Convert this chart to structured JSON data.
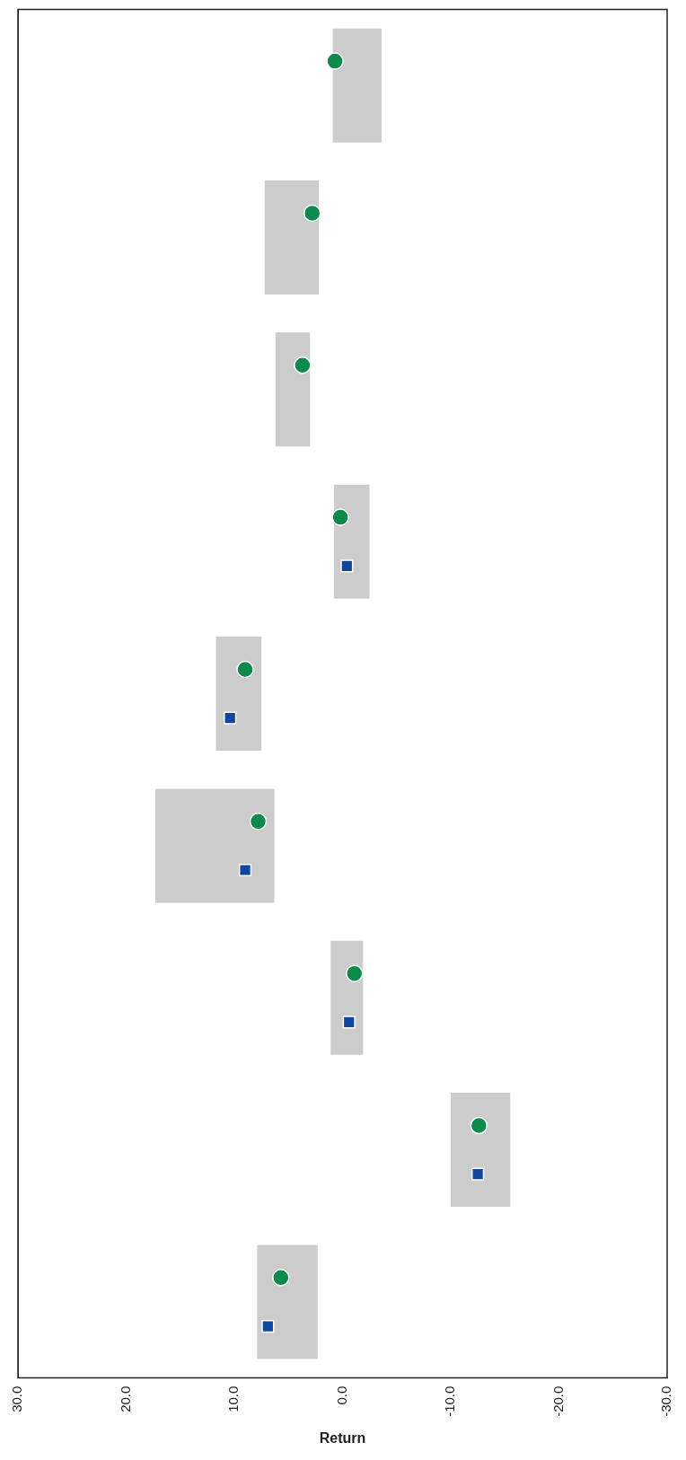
{
  "chart_data": {
    "type": "bar",
    "orientation": "horizontal",
    "xlabel": "Return",
    "categories": [
      null,
      null,
      null,
      null,
      null,
      null,
      null,
      null,
      null
    ],
    "xlim": [
      30,
      -30
    ],
    "xticks": [
      {
        "value": 30,
        "label": "30.0"
      },
      {
        "value": 20,
        "label": "20.0"
      },
      {
        "value": 10,
        "label": "10.0"
      },
      {
        "value": 0,
        "label": "0.0"
      },
      {
        "value": -10,
        "label": "-10.0"
      },
      {
        "value": -20,
        "label": "-20.0"
      },
      {
        "value": -30,
        "label": "-30.0"
      }
    ],
    "grid": false,
    "legend": false,
    "series": [
      {
        "color": "#cccccc",
        "base": [
          -3.6,
          2.2,
          3.0,
          -2.5,
          7.5,
          6.3,
          -1.9,
          -15.5,
          2.3
        ],
        "values": [
          4.5,
          5.0,
          3.2,
          3.3,
          4.2,
          11.0,
          3.0,
          5.5,
          5.6
        ]
      },
      {
        "type": "scatter",
        "marker": "circle",
        "color": "#0b8a4c",
        "values": [
          0.7,
          2.8,
          3.7,
          0.2,
          9.0,
          7.8,
          -1.1,
          -12.6,
          5.7
        ]
      },
      {
        "type": "scatter",
        "marker": "square",
        "color": "#0d47a1",
        "values": [
          null,
          null,
          null,
          -0.4,
          10.4,
          9.0,
          -0.6,
          -12.5,
          6.9
        ]
      }
    ]
  }
}
